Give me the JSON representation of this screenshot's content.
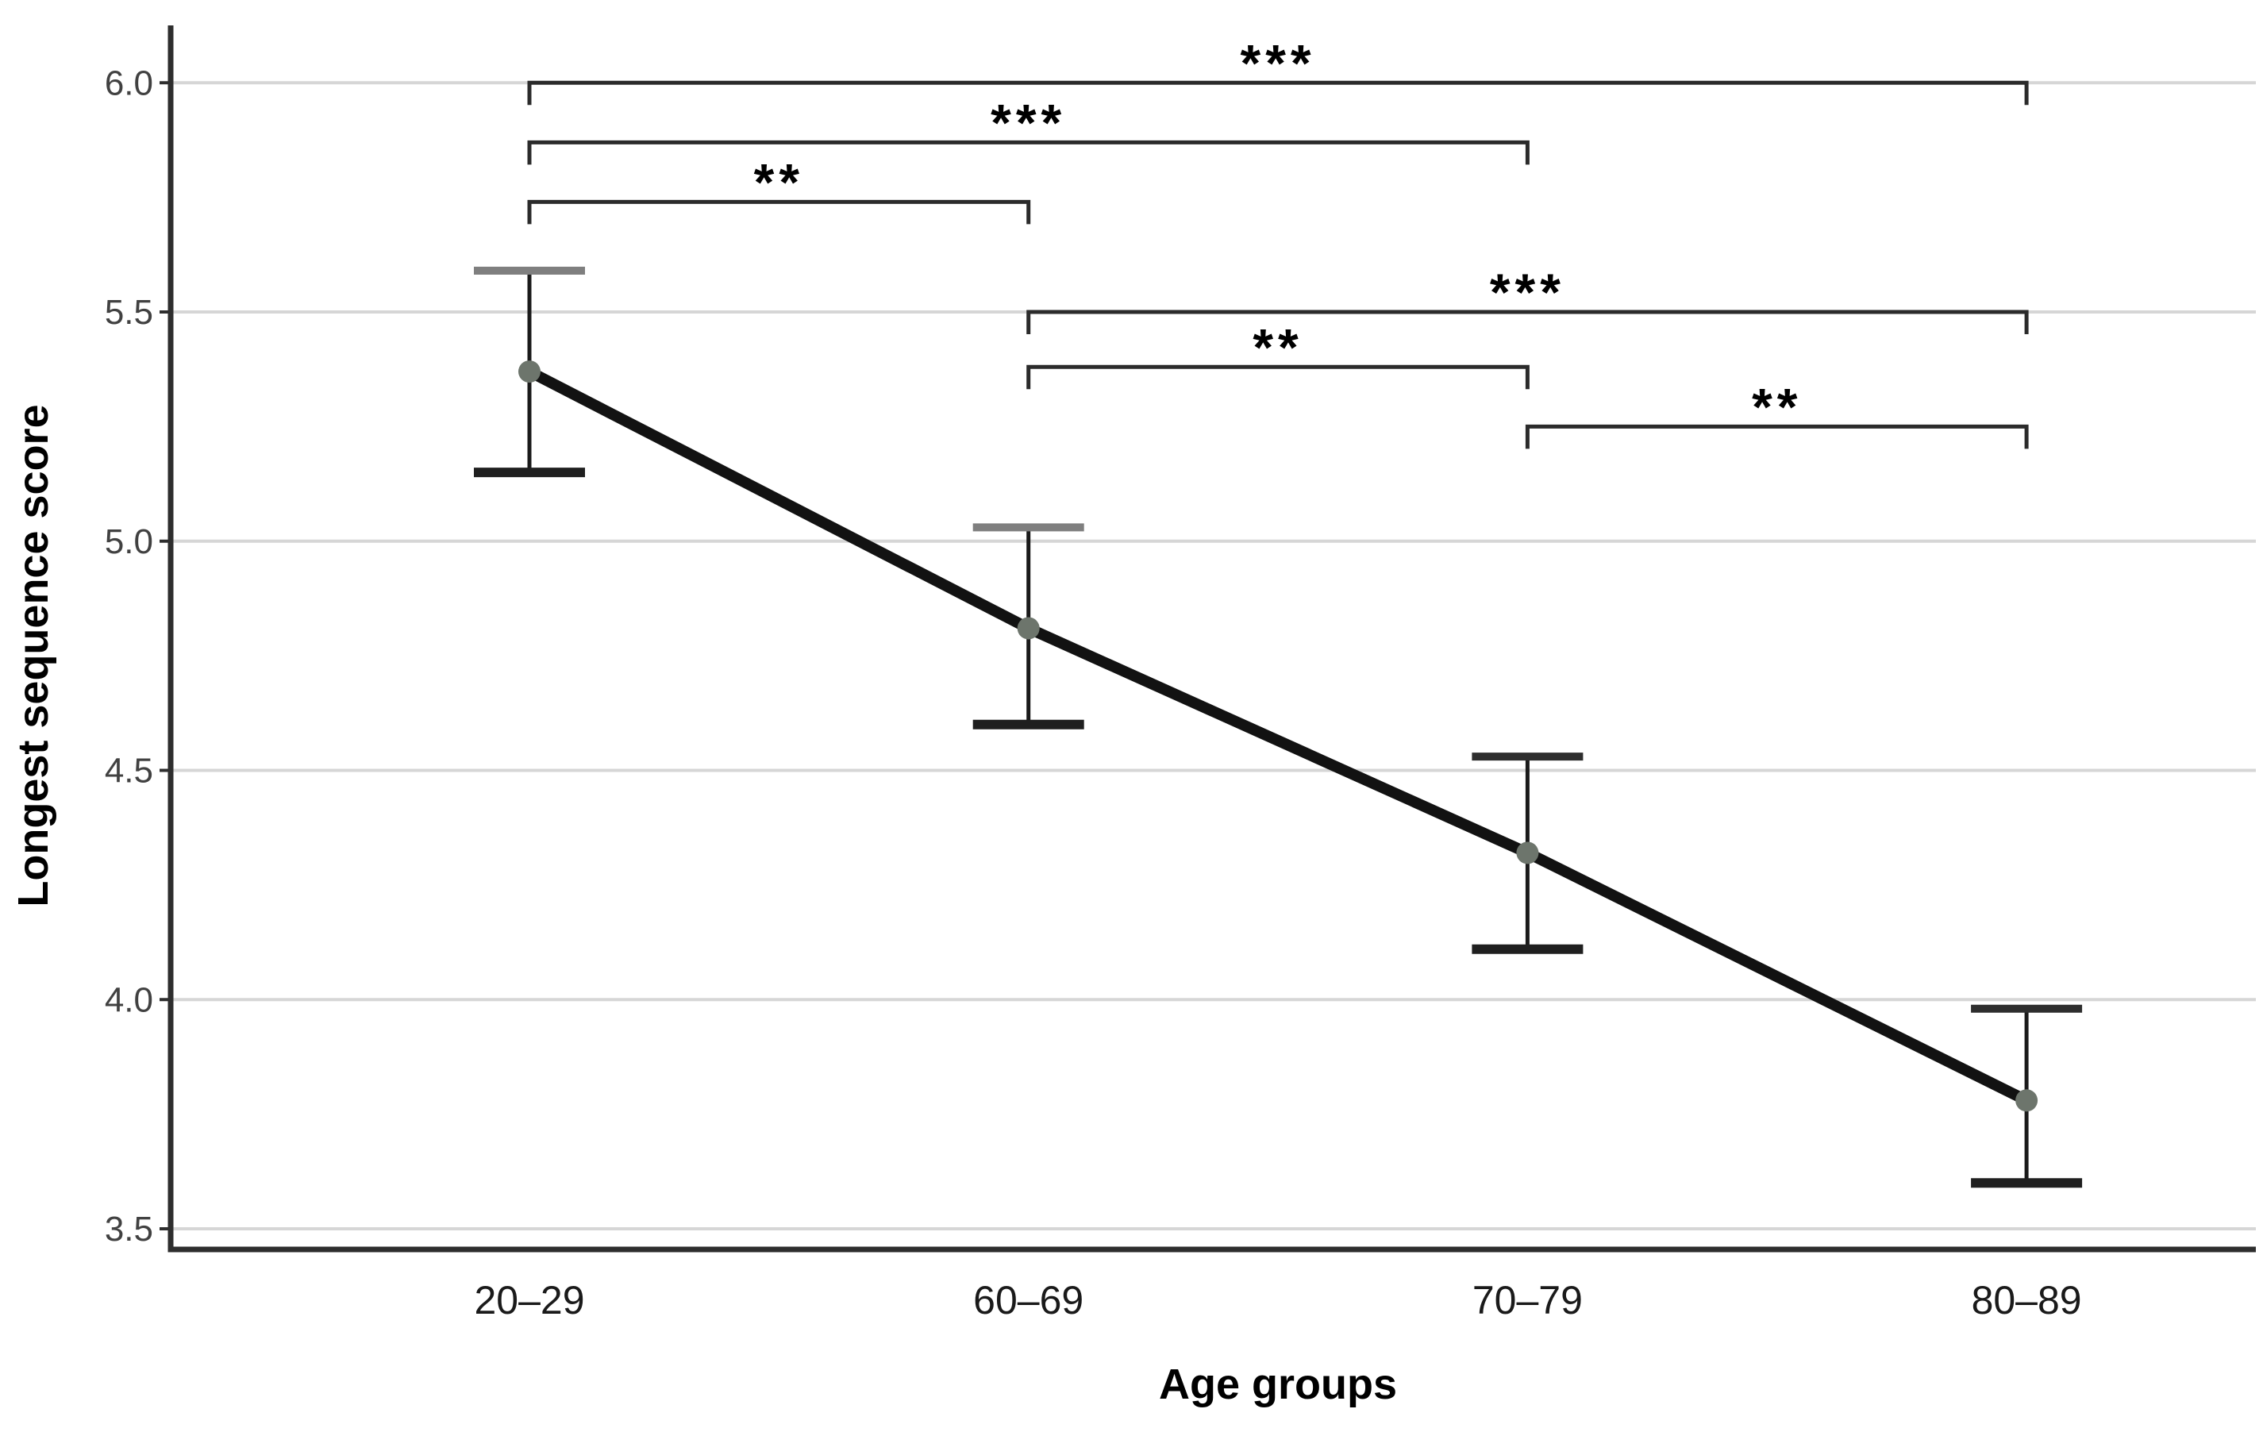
{
  "figure": {
    "background": "#ffffff"
  },
  "chart_data": {
    "type": "line",
    "title": "",
    "xlabel": "Age groups",
    "ylabel": "Longest sequence score",
    "categories": [
      "20–29",
      "60–69",
      "70–79",
      "80–89"
    ],
    "series": [
      {
        "name": "Longest sequence score",
        "values": [
          5.37,
          4.81,
          4.32,
          3.78
        ]
      }
    ],
    "error_bars": {
      "upper": [
        5.59,
        5.03,
        4.53,
        3.98
      ],
      "lower": [
        5.15,
        4.6,
        4.11,
        3.6
      ]
    },
    "yticks": [
      "6.0",
      "5.5",
      "5.0",
      "4.5",
      "4.0",
      "3.5"
    ],
    "ytick_values": [
      6.0,
      5.5,
      5.0,
      4.5,
      4.0,
      3.5
    ],
    "ylim": [
      3.45,
      6.13
    ],
    "grid": true,
    "legend": false,
    "significance_brackets": [
      {
        "from": "20–29",
        "to": "80–89",
        "label": "***",
        "level": 6.0
      },
      {
        "from": "20–29",
        "to": "70–79",
        "label": "***",
        "level": 5.87
      },
      {
        "from": "20–29",
        "to": "60–69",
        "label": "**",
        "level": 5.74
      },
      {
        "from": "60–69",
        "to": "80–89",
        "label": "***",
        "level": 5.5
      },
      {
        "from": "60–69",
        "to": "70–79",
        "label": "**",
        "level": 5.38
      },
      {
        "from": "70–79",
        "to": "80–89",
        "label": "**",
        "level": 5.25
      }
    ],
    "colors": {
      "line": "#121212",
      "marker": "#6d756c",
      "error_bar": "#1a1a1a",
      "cap_top": [
        "#7f7f7f",
        "#7f7f7f",
        "#2e2e2e",
        "#2e2e2e"
      ],
      "cap_bottom": "#1f1f1f",
      "grid": "#d6d6d6",
      "axis": "#2e2e2e",
      "bracket": "#2b2b2b",
      "tick_label": "#414141",
      "x_tick_label": "#1a1a1a",
      "text": "#000000"
    }
  }
}
